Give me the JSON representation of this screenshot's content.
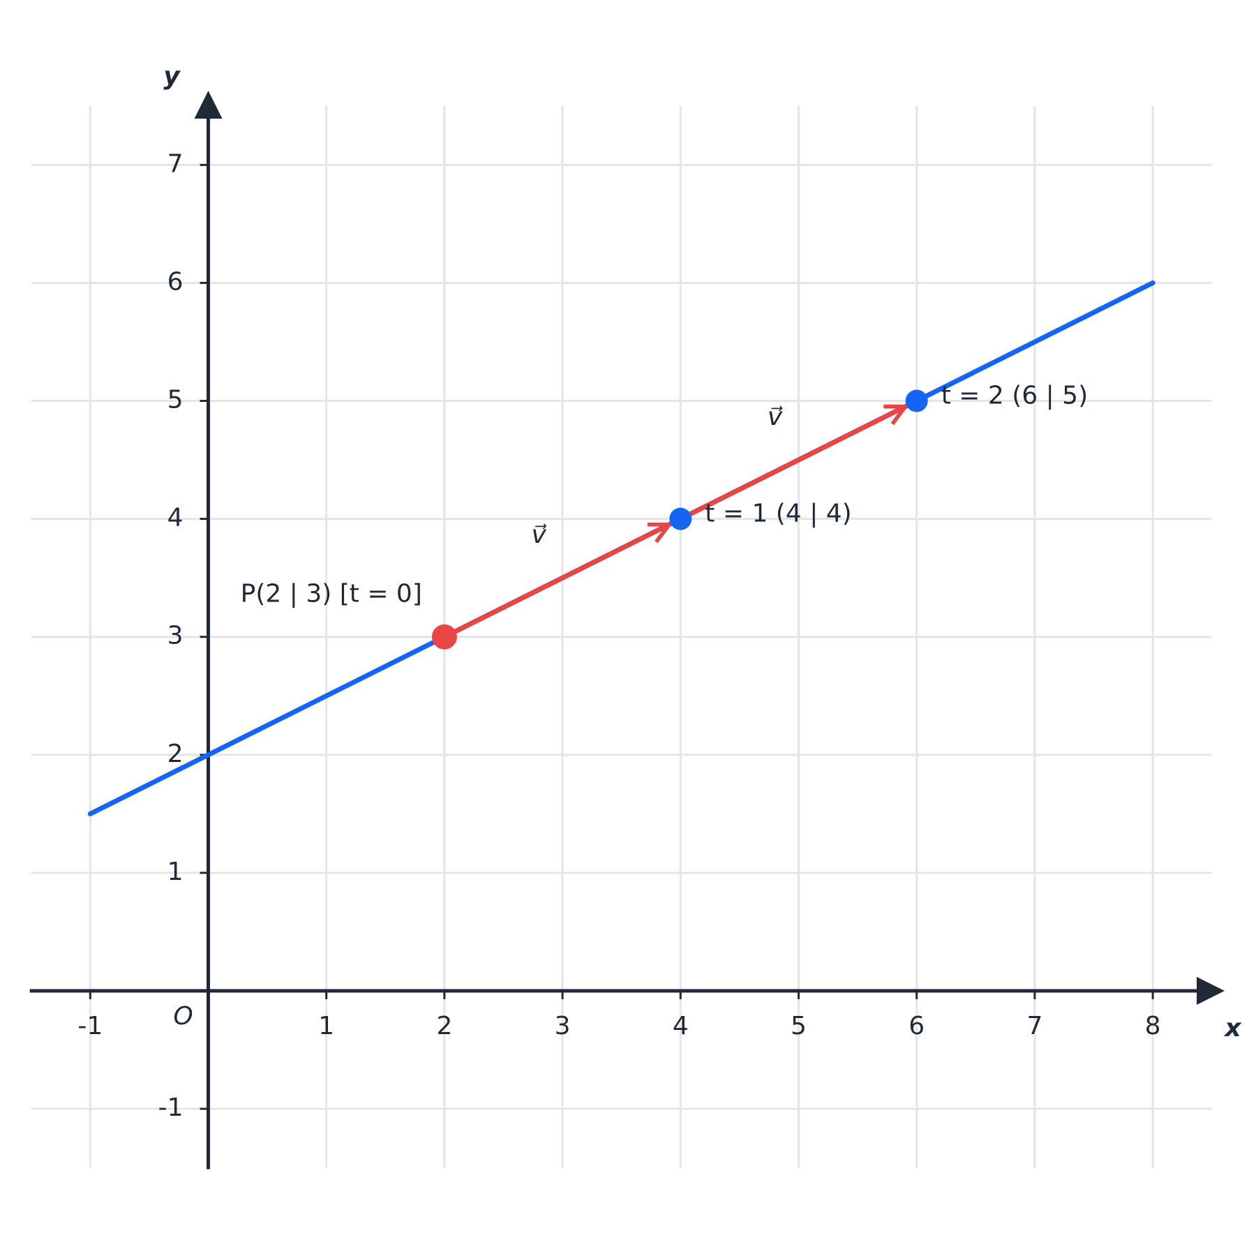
{
  "chart_data": {
    "type": "line",
    "x_label": "x",
    "y_label": "y",
    "origin_label": "O",
    "xlim": [
      -1.5,
      8.5
    ],
    "ylim": [
      -1.5,
      7.5
    ],
    "xticks": [
      -1,
      1,
      2,
      3,
      4,
      5,
      6,
      7,
      8
    ],
    "yticks": [
      -1,
      1,
      2,
      3,
      4,
      5,
      6,
      7
    ],
    "grid": true,
    "line": {
      "color": "#1565f5",
      "x": [
        -1,
        8
      ],
      "y": [
        1.5,
        6
      ]
    },
    "vectors": [
      {
        "from": [
          2,
          3
        ],
        "to": [
          4,
          4
        ],
        "label": "v⃗",
        "color": "#e84545"
      },
      {
        "from": [
          4,
          4
        ],
        "to": [
          6,
          5
        ],
        "label": "v⃗",
        "color": "#e84545"
      }
    ],
    "points": [
      {
        "x": 2,
        "y": 3,
        "color": "#e84545",
        "label": "P(2 | 3) [t = 0]"
      },
      {
        "x": 4,
        "y": 4,
        "color": "#1565f5",
        "label": "t = 1 (4 | 4)"
      },
      {
        "x": 6,
        "y": 5,
        "color": "#1565f5",
        "label": "t = 2 (6 | 5)"
      }
    ]
  }
}
